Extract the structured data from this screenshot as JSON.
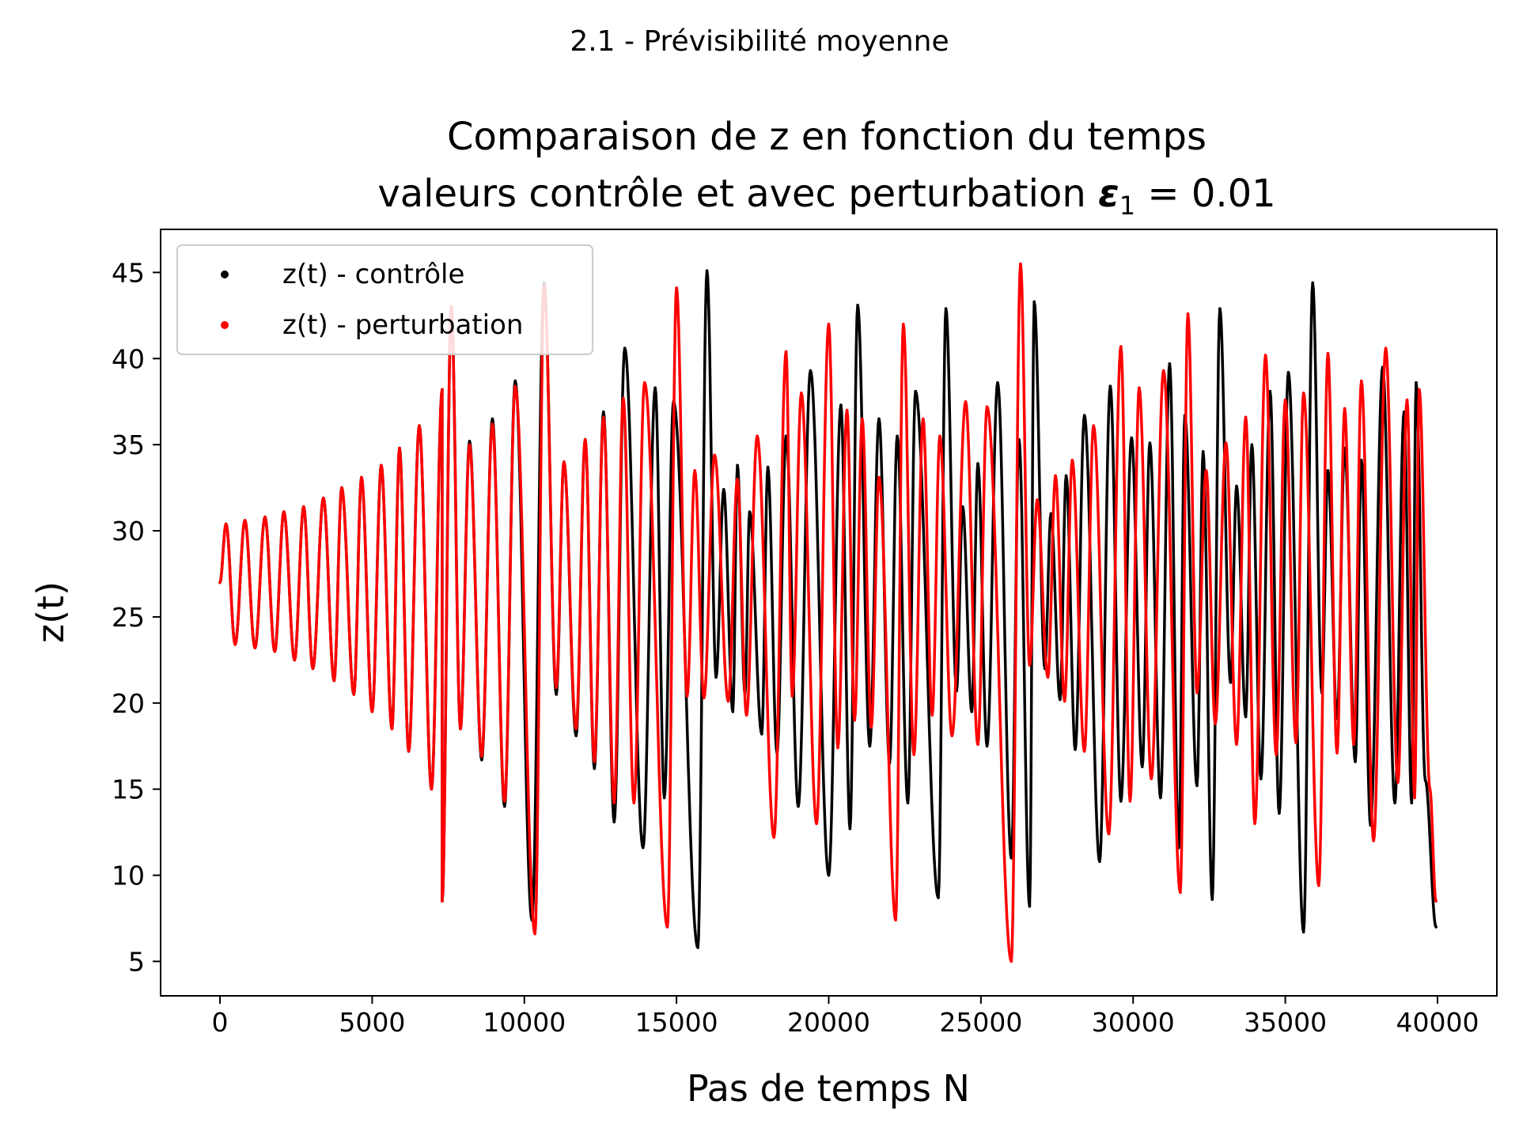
{
  "suptitle": "2.1 - Prévisibilité moyenne",
  "chart_data": {
    "type": "scatter",
    "title_line1": "Comparaison de z en fonction du temps",
    "title_line2_prefix": "valeurs contrôle et avec perturbation ",
    "title_line2_symbol": "ε",
    "title_line2_subscript": "1",
    "title_line2_suffix": " = 0.01",
    "xlabel": "Pas de temps N",
    "ylabel": "z(t)",
    "xlim": [
      -1950,
      41950
    ],
    "ylim": [
      3.0,
      47.5
    ],
    "xticks": [
      0,
      5000,
      10000,
      15000,
      20000,
      25000,
      30000,
      35000,
      40000
    ],
    "yticks": [
      5,
      10,
      15,
      20,
      25,
      30,
      35,
      40,
      45
    ],
    "grid": false,
    "legend_position": "top-left",
    "series": [
      {
        "name": "z(t) - contrôle",
        "color": "#000000",
        "extrema": [
          [
            0,
            27.0
          ],
          [
            200,
            30.4
          ],
          [
            500,
            23.4
          ],
          [
            820,
            30.6
          ],
          [
            1150,
            23.2
          ],
          [
            1480,
            30.8
          ],
          [
            1800,
            23.0
          ],
          [
            2100,
            31.1
          ],
          [
            2450,
            22.5
          ],
          [
            2750,
            31.4
          ],
          [
            3050,
            22.0
          ],
          [
            3400,
            31.9
          ],
          [
            3750,
            21.3
          ],
          [
            4000,
            32.5
          ],
          [
            4400,
            20.5
          ],
          [
            4650,
            33.1
          ],
          [
            5000,
            19.5
          ],
          [
            5300,
            33.8
          ],
          [
            5650,
            18.5
          ],
          [
            5900,
            34.8
          ],
          [
            6200,
            17.2
          ],
          [
            6550,
            36.1
          ],
          [
            6950,
            15.0
          ],
          [
            7300,
            38.2
          ],
          [
            7300,
            8.5
          ],
          [
            7600,
            43.0
          ],
          [
            7900,
            18.5
          ],
          [
            8200,
            35.2
          ],
          [
            8600,
            16.7
          ],
          [
            8950,
            36.5
          ],
          [
            9350,
            14.0
          ],
          [
            9700,
            38.7
          ],
          [
            10250,
            7.4
          ],
          [
            10650,
            44.4
          ],
          [
            11050,
            20.5
          ],
          [
            11300,
            34.0
          ],
          [
            11700,
            18.1
          ],
          [
            12000,
            35.3
          ],
          [
            12300,
            16.2
          ],
          [
            12600,
            36.9
          ],
          [
            12950,
            13.1
          ],
          [
            13300,
            40.6
          ],
          [
            13900,
            11.6
          ],
          [
            14300,
            38.3
          ],
          [
            14600,
            14.5
          ],
          [
            14900,
            37.5
          ],
          [
            15700,
            5.8
          ],
          [
            16000,
            45.1
          ],
          [
            16300,
            21.5
          ],
          [
            16550,
            32.4
          ],
          [
            16850,
            19.5
          ],
          [
            17000,
            33.8
          ],
          [
            17250,
            20.5
          ],
          [
            17400,
            31.1
          ],
          [
            17800,
            18.2
          ],
          [
            18000,
            33.7
          ],
          [
            18300,
            17.1
          ],
          [
            18600,
            35.5
          ],
          [
            19000,
            14.0
          ],
          [
            19400,
            39.3
          ],
          [
            20000,
            10.0
          ],
          [
            20400,
            37.3
          ],
          [
            20700,
            12.7
          ],
          [
            20950,
            43.1
          ],
          [
            21350,
            17.5
          ],
          [
            21650,
            36.5
          ],
          [
            22000,
            16.5
          ],
          [
            22250,
            35.5
          ],
          [
            22600,
            14.2
          ],
          [
            22850,
            38.1
          ],
          [
            23600,
            8.7
          ],
          [
            23850,
            42.9
          ],
          [
            24200,
            20.7
          ],
          [
            24400,
            31.4
          ],
          [
            24700,
            19.5
          ],
          [
            24900,
            33.9
          ],
          [
            25200,
            17.5
          ],
          [
            25550,
            38.6
          ],
          [
            26000,
            11.0
          ],
          [
            26250,
            35.3
          ],
          [
            26600,
            8.2
          ],
          [
            26750,
            43.3
          ],
          [
            27100,
            22.0
          ],
          [
            27300,
            31.0
          ],
          [
            27600,
            20.2
          ],
          [
            27800,
            33.2
          ],
          [
            28100,
            17.3
          ],
          [
            28400,
            36.7
          ],
          [
            28900,
            10.8
          ],
          [
            29250,
            38.4
          ],
          [
            29600,
            14.3
          ],
          [
            29950,
            35.4
          ],
          [
            30300,
            16.3
          ],
          [
            30550,
            35.1
          ],
          [
            30900,
            14.5
          ],
          [
            31200,
            39.7
          ],
          [
            31500,
            11.6
          ],
          [
            31700,
            36.7
          ],
          [
            32100,
            15.2
          ],
          [
            32300,
            34.6
          ],
          [
            32600,
            8.6
          ],
          [
            32850,
            42.9
          ],
          [
            33200,
            21.2
          ],
          [
            33400,
            32.6
          ],
          [
            33700,
            19.2
          ],
          [
            33900,
            35.0
          ],
          [
            34200,
            15.6
          ],
          [
            34500,
            38.1
          ],
          [
            34800,
            13.6
          ],
          [
            35100,
            39.2
          ],
          [
            35600,
            6.7
          ],
          [
            35900,
            44.4
          ],
          [
            36200,
            20.6
          ],
          [
            36400,
            33.5
          ],
          [
            36700,
            19.1
          ],
          [
            36950,
            34.8
          ],
          [
            37300,
            16.6
          ],
          [
            37500,
            34.1
          ],
          [
            37800,
            12.9
          ],
          [
            38200,
            39.5
          ],
          [
            38600,
            14.2
          ],
          [
            38900,
            36.9
          ],
          [
            39150,
            14.2
          ],
          [
            39300,
            38.6
          ],
          [
            39600,
            15.5
          ],
          [
            39950,
            7.0
          ]
        ]
      },
      {
        "name": "z(t) - perturbation",
        "color": "#ff0000",
        "extrema": [
          [
            0,
            27.0
          ],
          [
            200,
            30.4
          ],
          [
            500,
            23.4
          ],
          [
            820,
            30.6
          ],
          [
            1150,
            23.2
          ],
          [
            1480,
            30.8
          ],
          [
            1800,
            23.0
          ],
          [
            2100,
            31.1
          ],
          [
            2450,
            22.5
          ],
          [
            2750,
            31.4
          ],
          [
            3050,
            22.0
          ],
          [
            3400,
            31.9
          ],
          [
            3750,
            21.3
          ],
          [
            4000,
            32.5
          ],
          [
            4400,
            20.5
          ],
          [
            4650,
            33.1
          ],
          [
            5000,
            19.5
          ],
          [
            5300,
            33.8
          ],
          [
            5650,
            18.5
          ],
          [
            5900,
            34.8
          ],
          [
            6200,
            17.2
          ],
          [
            6550,
            36.1
          ],
          [
            6950,
            15.0
          ],
          [
            7300,
            38.2
          ],
          [
            7300,
            8.5
          ],
          [
            7600,
            43.0
          ],
          [
            7900,
            18.5
          ],
          [
            8200,
            35.0
          ],
          [
            8600,
            16.9
          ],
          [
            8950,
            36.2
          ],
          [
            9350,
            14.3
          ],
          [
            9700,
            38.4
          ],
          [
            10350,
            6.6
          ],
          [
            10650,
            44.2
          ],
          [
            11050,
            20.9
          ],
          [
            11300,
            34.0
          ],
          [
            11700,
            18.5
          ],
          [
            12000,
            35.3
          ],
          [
            12300,
            16.6
          ],
          [
            12600,
            36.6
          ],
          [
            12950,
            14.2
          ],
          [
            13250,
            37.7
          ],
          [
            13600,
            14.2
          ],
          [
            13950,
            38.6
          ],
          [
            14700,
            7.0
          ],
          [
            15000,
            44.1
          ],
          [
            15350,
            20.4
          ],
          [
            15600,
            33.5
          ],
          [
            15900,
            20.3
          ],
          [
            16250,
            34.4
          ],
          [
            16700,
            20.1
          ],
          [
            17000,
            33.0
          ],
          [
            17300,
            19.3
          ],
          [
            17650,
            35.5
          ],
          [
            18200,
            12.2
          ],
          [
            18600,
            40.4
          ],
          [
            18800,
            20.4
          ],
          [
            19100,
            38.0
          ],
          [
            19600,
            13.0
          ],
          [
            20000,
            42.0
          ],
          [
            20300,
            17.4
          ],
          [
            20600,
            37.0
          ],
          [
            20850,
            19.0
          ],
          [
            21100,
            36.5
          ],
          [
            21400,
            18.6
          ],
          [
            21650,
            33.1
          ],
          [
            22200,
            7.4
          ],
          [
            22450,
            42.0
          ],
          [
            22800,
            17.0
          ],
          [
            23100,
            36.5
          ],
          [
            23400,
            19.3
          ],
          [
            23650,
            35.5
          ],
          [
            24050,
            18.1
          ],
          [
            24500,
            37.5
          ],
          [
            24900,
            17.6
          ],
          [
            25200,
            37.2
          ],
          [
            26000,
            5.0
          ],
          [
            26300,
            45.5
          ],
          [
            26600,
            22.2
          ],
          [
            26850,
            31.8
          ],
          [
            27200,
            21.5
          ],
          [
            27450,
            33.2
          ],
          [
            27750,
            20.1
          ],
          [
            28000,
            34.1
          ],
          [
            28400,
            17.2
          ],
          [
            28700,
            36.1
          ],
          [
            29200,
            12.4
          ],
          [
            29600,
            40.7
          ],
          [
            29900,
            14.3
          ],
          [
            30200,
            38.3
          ],
          [
            30600,
            15.6
          ],
          [
            31000,
            39.3
          ],
          [
            31550,
            9.0
          ],
          [
            31800,
            42.6
          ],
          [
            32100,
            20.6
          ],
          [
            32400,
            33.5
          ],
          [
            32700,
            18.8
          ],
          [
            33050,
            35.1
          ],
          [
            33400,
            17.6
          ],
          [
            33700,
            36.6
          ],
          [
            34000,
            13.0
          ],
          [
            34350,
            40.2
          ],
          [
            34700,
            17.0
          ],
          [
            35000,
            37.6
          ],
          [
            35350,
            17.7
          ],
          [
            35600,
            38.0
          ],
          [
            36100,
            9.4
          ],
          [
            36400,
            40.3
          ],
          [
            36700,
            17.1
          ],
          [
            36950,
            37.1
          ],
          [
            37250,
            17.6
          ],
          [
            37500,
            38.7
          ],
          [
            37900,
            12.0
          ],
          [
            38300,
            40.6
          ],
          [
            38700,
            15.4
          ],
          [
            39000,
            37.6
          ],
          [
            39250,
            14.5
          ],
          [
            39400,
            38.2
          ],
          [
            39750,
            15.0
          ],
          [
            39950,
            8.5
          ]
        ]
      }
    ]
  }
}
